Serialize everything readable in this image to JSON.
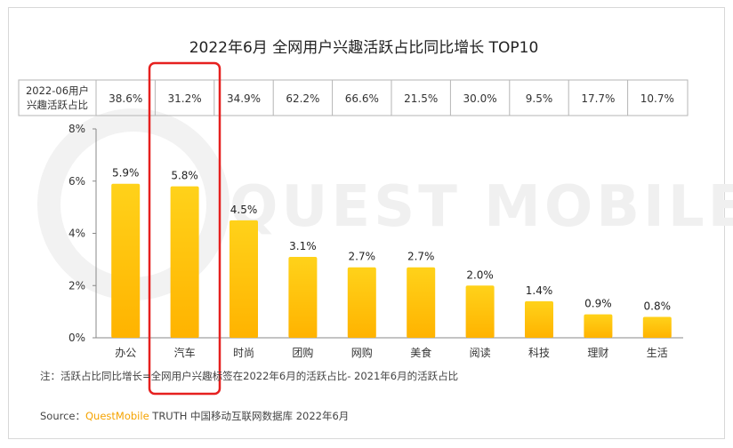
{
  "chart_data": {
    "type": "bar",
    "title": "2022年6月 全网用户兴趣活跃占比同比增长 TOP10",
    "categories": [
      "办公",
      "汽车",
      "时尚",
      "团购",
      "网购",
      "美食",
      "阅读",
      "科技",
      "理财",
      "生活"
    ],
    "values": [
      5.9,
      5.8,
      4.5,
      3.1,
      2.7,
      2.7,
      2.0,
      1.4,
      0.9,
      0.8
    ],
    "value_labels": [
      "5.9%",
      "5.8%",
      "4.5%",
      "3.1%",
      "2.7%",
      "2.7%",
      "2.0%",
      "1.4%",
      "0.9%",
      "0.8%"
    ],
    "ylim": [
      0,
      8
    ],
    "yticks": [
      "0%",
      "2%",
      "4%",
      "6%",
      "8%"
    ],
    "table": {
      "header_line1": "2022-06用户",
      "header_line2": "兴趣活跃占比",
      "values": [
        "38.6%",
        "31.2%",
        "34.9%",
        "62.2%",
        "66.6%",
        "21.5%",
        "30.0%",
        "9.5%",
        "17.7%",
        "10.7%"
      ]
    },
    "highlight_category": "汽车",
    "colors": {
      "bar_top": "#ffd21a",
      "bar_bottom": "#ffb300",
      "highlight_box": "#e6201f",
      "table_border": "#b5b5b5"
    },
    "grid": false,
    "legend": "none"
  },
  "note": "注：活跃占比同比增长=全网用户兴趣标签在2022年6月的活跃占比- 2021年6月的活跃占比",
  "source": {
    "prefix": "Source：",
    "brand": "QuestMobile",
    "rest": " TRUTH 中国移动互联网数据库 2022年6月",
    "brand_color": "#f5a300"
  },
  "watermark": "QUEST MOBILE"
}
